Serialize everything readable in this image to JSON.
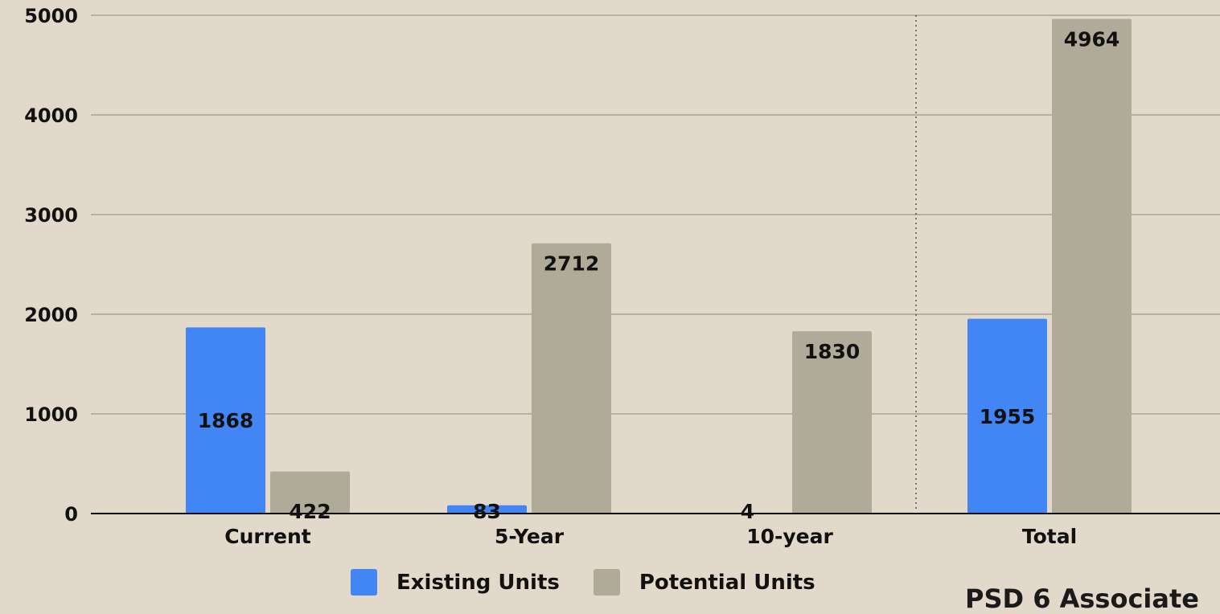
{
  "colors": {
    "background": "#e2d9cb",
    "existing": "#4286f5",
    "potential": "#b0aa99",
    "grid": "#a9a399",
    "axis": "#111111"
  },
  "chart_data": {
    "type": "bar",
    "categories": [
      "Current",
      "5-Year",
      "10-year",
      "Total"
    ],
    "series": [
      {
        "name": "Existing Units",
        "values": [
          1868,
          83,
          4,
          1955
        ]
      },
      {
        "name": "Potential Units",
        "values": [
          422,
          2712,
          1830,
          4964
        ]
      }
    ],
    "ylim": [
      0,
      5000
    ],
    "yticks": [
      "0",
      "1000",
      "2000",
      "3000",
      "4000",
      "5000"
    ],
    "grid": true,
    "legend_position": "bottom",
    "data_labels": true,
    "separator": "dotted line between 10-year and Total"
  },
  "legend": {
    "existing_label": "Existing Units",
    "potential_label": "Potential Units"
  },
  "footer": {
    "corner_text": "PSD 6 Associate"
  }
}
